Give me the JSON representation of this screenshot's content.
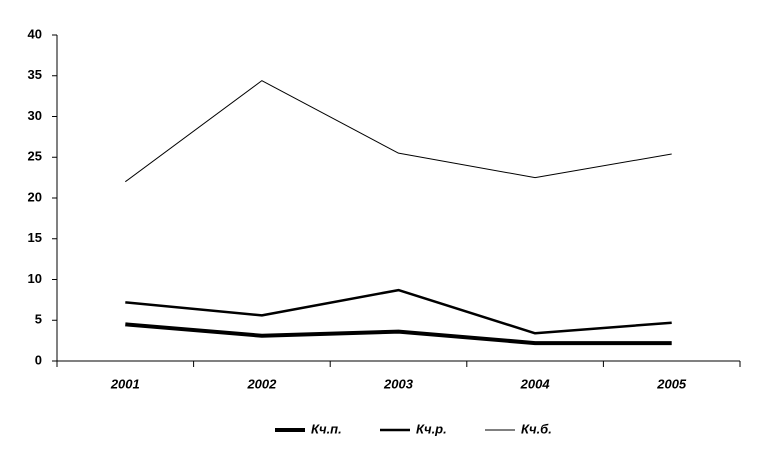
{
  "chart_data": {
    "type": "line",
    "categories": [
      "2001",
      "2002",
      "2003",
      "2004",
      "2005"
    ],
    "series": [
      {
        "name": "Кч.п.",
        "color": "#000000",
        "line_width": 4,
        "values": [
          4.5,
          3.1,
          3.6,
          2.2,
          2.2
        ]
      },
      {
        "name": "Кч.р.",
        "color": "#000000",
        "line_width": 2.5,
        "values": [
          7.2,
          5.6,
          8.7,
          3.4,
          4.7
        ]
      },
      {
        "name": "Кч.б.",
        "color": "#000000",
        "line_width": 1,
        "values": [
          22.0,
          34.4,
          25.5,
          22.5,
          25.4
        ]
      }
    ],
    "ylim": [
      0,
      40
    ],
    "yticks": [
      0,
      5,
      10,
      15,
      20,
      25,
      30,
      35,
      40
    ],
    "grid": false,
    "legend": "bottom"
  }
}
